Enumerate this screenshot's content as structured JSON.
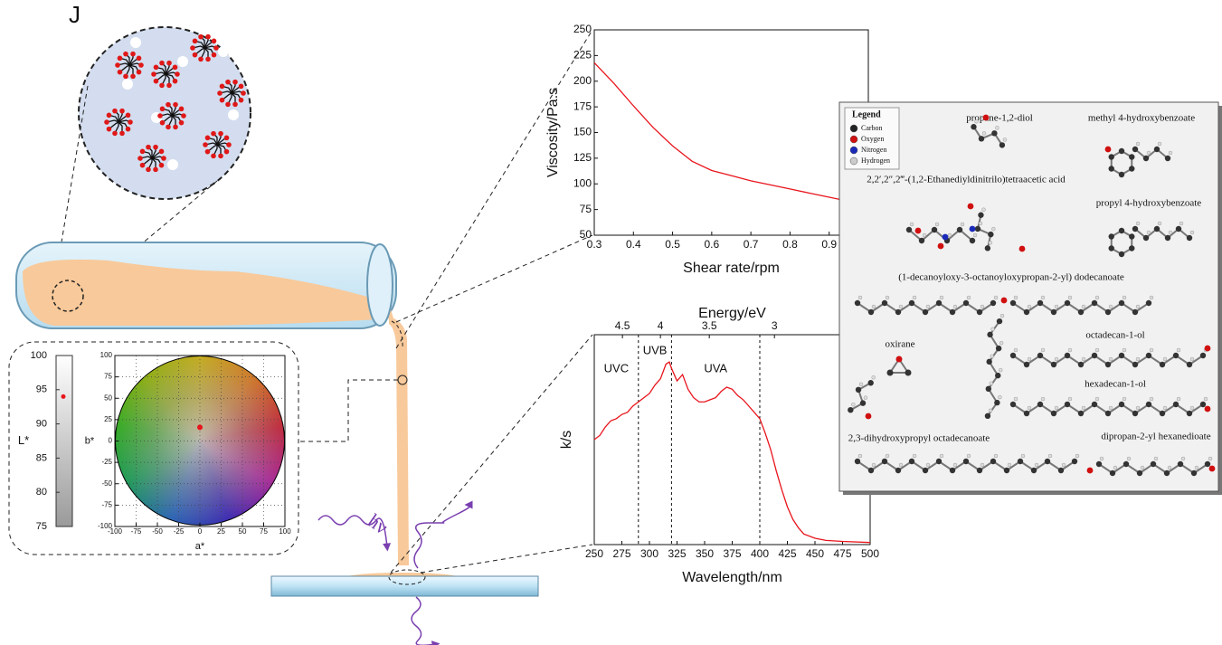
{
  "panel_label": "J",
  "hv": "hν",
  "chart_data": [
    {
      "type": "line",
      "x_label": "Shear rate/rpm",
      "y_label": "Viscosity/Pa.s",
      "color": "#e8141c",
      "x": [
        0.3,
        0.35,
        0.4,
        0.45,
        0.5,
        0.55,
        0.6,
        0.65,
        0.7,
        0.75,
        0.8,
        0.85,
        0.9,
        0.95,
        1.0
      ],
      "values": [
        218,
        198,
        176,
        155,
        137,
        122,
        113,
        108,
        103,
        99,
        95,
        91,
        87,
        83,
        80
      ],
      "xlim": [
        0.3,
        1.0
      ],
      "xticks": [
        0.3,
        0.4,
        0.5,
        0.6,
        0.7,
        0.8,
        0.9
      ],
      "ylim": [
        50,
        250
      ],
      "yticks": [
        50,
        75,
        100,
        125,
        150,
        175,
        200,
        225,
        250
      ]
    },
    {
      "type": "line",
      "x_label": "Wavelength/nm",
      "x2_label": "Energy/eV",
      "y_label": "k/s",
      "color": "#e8141c",
      "x": [
        250,
        255,
        260,
        265,
        270,
        275,
        280,
        285,
        290,
        295,
        300,
        305,
        310,
        315,
        318,
        320,
        325,
        330,
        335,
        340,
        345,
        350,
        355,
        360,
        365,
        370,
        375,
        380,
        385,
        390,
        395,
        400,
        405,
        410,
        415,
        420,
        425,
        430,
        435,
        440,
        450,
        460,
        475,
        500
      ],
      "values": [
        0.5,
        0.52,
        0.56,
        0.59,
        0.6,
        0.62,
        0.63,
        0.66,
        0.68,
        0.7,
        0.72,
        0.76,
        0.79,
        0.86,
        0.87,
        0.84,
        0.78,
        0.81,
        0.74,
        0.7,
        0.68,
        0.68,
        0.69,
        0.7,
        0.73,
        0.75,
        0.74,
        0.71,
        0.69,
        0.66,
        0.63,
        0.6,
        0.53,
        0.45,
        0.35,
        0.26,
        0.18,
        0.12,
        0.08,
        0.05,
        0.03,
        0.02,
        0.015,
        0.01
      ],
      "xlim": [
        250,
        500
      ],
      "xticks": [
        250,
        275,
        300,
        325,
        350,
        375,
        400,
        425,
        450,
        475,
        500
      ],
      "x2ticks": [
        4.5,
        4,
        3.5,
        3
      ],
      "ylim": [
        0,
        1
      ],
      "vlines": [
        290,
        320,
        400
      ],
      "annotations": [
        "UVC",
        "UVB",
        "UVA"
      ]
    },
    {
      "type": "scatter",
      "x_label": "a*",
      "y_label": "b*",
      "color": "#e8141c",
      "x": [
        0
      ],
      "values": [
        16
      ],
      "xlim": [
        -100,
        100
      ],
      "xticks": [
        -100,
        -75,
        -50,
        -25,
        0,
        25,
        50,
        75,
        100
      ],
      "ylim": [
        -100,
        100
      ],
      "yticks": [
        -100,
        -75,
        -50,
        -25,
        0,
        25,
        50,
        75,
        100
      ],
      "grid": true
    },
    {
      "type": "gauge",
      "y_label": "L*",
      "color": "#e8141c",
      "values": [
        94
      ],
      "ylim": [
        75,
        100
      ],
      "yticks": [
        75,
        80,
        85,
        90,
        95,
        100
      ]
    }
  ],
  "molecules": {
    "legend_title": "Legend",
    "legend": [
      {
        "label": "Carbon",
        "color": "#222222"
      },
      {
        "label": "Oxygen",
        "color": "#d01010"
      },
      {
        "label": "Nitrogen",
        "color": "#1a2ab8"
      },
      {
        "label": "Hydrogen",
        "color": "#cccccc"
      }
    ],
    "names": [
      "propane-1,2-diol",
      "methyl 4-hydroxybenzoate",
      "2,2′,2″,2‴-(1,2-Ethanediyldinitrilo)tetraacetic acid",
      "propyl 4-hydroxybenzoate",
      "(1-decanoyloxy-3-octanoyloxypropan-2-yl) dodecanoate",
      "oxirane",
      "octadecan-1-ol",
      "hexadecan-1-ol",
      "2,3-dihydroxypropyl octadecanoate",
      "dipropan-2-yl hexanedioate"
    ]
  }
}
